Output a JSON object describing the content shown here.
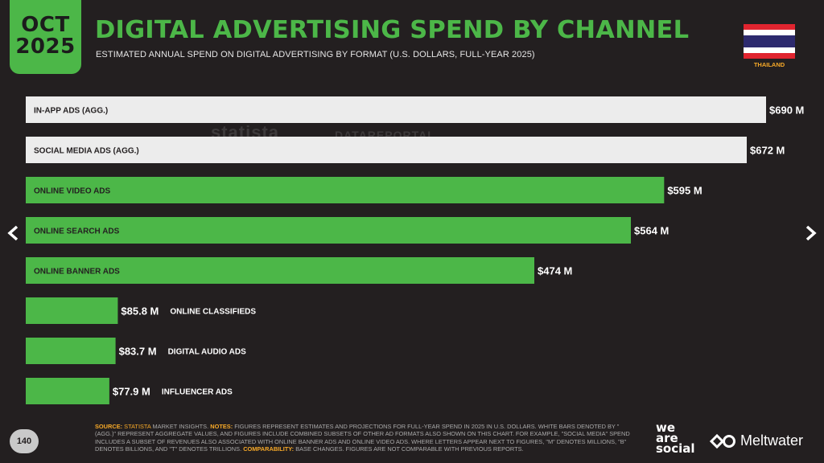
{
  "header": {
    "badge_month": "OCT",
    "badge_year": "2025",
    "title": "DIGITAL ADVERTISING SPEND BY CHANNEL",
    "subtitle": "ESTIMATED ANNUAL SPEND ON DIGITAL ADVERTISING BY FORMAT (U.S. DOLLARS, FULL-YEAR 2025)",
    "country": "THAILAND"
  },
  "watermarks": {
    "left": "statista",
    "right": "DATAREPORTAL"
  },
  "colors": {
    "background": "#231f20",
    "accent": "#4cb748",
    "aggregate_bar": "#ececec",
    "highlight": "#f7a928"
  },
  "chart_data": {
    "type": "bar",
    "orientation": "horizontal",
    "categories": [
      "IN-APP ADS (AGG.)",
      "SOCIAL MEDIA ADS (AGG.)",
      "ONLINE VIDEO ADS",
      "ONLINE SEARCH ADS",
      "ONLINE BANNER ADS",
      "ONLINE CLASSIFIEDS",
      "DIGITAL AUDIO ADS",
      "INFLUENCER ADS"
    ],
    "values": [
      690,
      672,
      595,
      564,
      474,
      85.8,
      83.7,
      77.9
    ],
    "value_labels": [
      "$690 M",
      "$672 M",
      "$595 M",
      "$564 M",
      "$474 M",
      "$85.8 M",
      "$83.7 M",
      "$77.9 M"
    ],
    "aggregate": [
      true,
      true,
      false,
      false,
      false,
      false,
      false,
      false
    ],
    "unit": "millions of U.S. dollars"
  },
  "footer": {
    "source_label": "SOURCE:",
    "source_name": "STATISTA",
    "source_rest": "MARKET INSIGHTS.",
    "notes_label": "NOTES:",
    "notes_text": "FIGURES REPRESENT ESTIMATES AND PROJECTIONS FOR FULL-YEAR SPEND IN 2025 IN U.S. DOLLARS. WHITE BARS DENOTED BY \"(AGG.)\" REPRESENT AGGREGATE VALUES, AND FIGURES INCLUDE COMBINED SUBSETS OF OTHER AD FORMATS ALSO SHOWN ON THIS CHART. FOR EXAMPLE, \"SOCIAL MEDIA\" SPEND INCLUDES A SUBSET OF REVENUES ALSO ASSOCIATED WITH ONLINE BANNER ADS AND ONLINE VIDEO ADS. WHERE LETTERS APPEAR NEXT TO FIGURES, \"M\" DENOTES MILLIONS, \"B\" DENOTES BILLIONS, AND \"T\" DENOTES TRILLIONS.",
    "comparability_label": "COMPARABILITY:",
    "comparability_text": "BASE CHANGES. FIGURES ARE NOT COMPARABLE WITH PREVIOUS REPORTS.",
    "page_number": "140"
  },
  "brands": {
    "we": "we",
    "are": "are",
    "social": "social",
    "meltwater": "Meltwater"
  },
  "nav": {
    "prev_icon": "chevron-left-icon",
    "next_icon": "chevron-right-icon"
  }
}
